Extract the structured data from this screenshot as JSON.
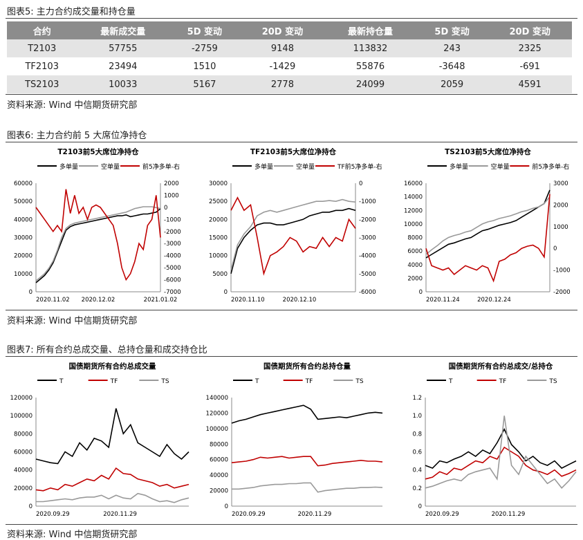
{
  "fig5": {
    "title": "图表5:  主力合约成交量和持仓量",
    "headers": [
      "合约",
      "最新成交量",
      "5D 变动",
      "20D 变动",
      "最新持仓量",
      "5D 变动",
      "20D 变动"
    ],
    "rows": [
      [
        "T2103",
        "57755",
        "-2759",
        "9148",
        "113832",
        "243",
        "2325"
      ],
      [
        "TF2103",
        "23494",
        "1510",
        "-1429",
        "55876",
        "-3648",
        "-691"
      ],
      [
        "TS2103",
        "10033",
        "5167",
        "2778",
        "24099",
        "2059",
        "4591"
      ]
    ],
    "source": "资料来源: Wind  中信期货研究部"
  },
  "fig6": {
    "title": "图表6:  主力合约前 5 大席位净持仓",
    "source": "资料来源: Wind  中信期货研究部"
  },
  "fig7": {
    "title": "图表7:  所有合约总成交量、总持仓量和成交持仓比",
    "source": "资料来源: Wind  中信期货研究部"
  },
  "colors": {
    "T": "#000000",
    "TF": "#c00000",
    "TS": "#999999",
    "header": "#8c8c8c"
  },
  "chart_data": [
    {
      "type": "line",
      "title": "T2103前5大席位净持仓",
      "legend": [
        "多单量",
        "空单量",
        "前5净多单-右"
      ],
      "x_ticks": [
        "2020.11.02",
        "2020.12.02",
        "2021.01.02"
      ],
      "ylim": [
        0,
        60000
      ],
      "y_ticks": [
        0,
        10000,
        20000,
        30000,
        40000,
        50000,
        60000
      ],
      "y2lim": [
        -7000,
        2000
      ],
      "y2_ticks": [
        -7000,
        -6000,
        -5000,
        -4000,
        -3000,
        -2000,
        -1000,
        0,
        1000,
        2000
      ],
      "series": [
        {
          "name": "多单量",
          "axis": "left",
          "color": "#000000",
          "values": [
            5000,
            7000,
            9000,
            12000,
            16000,
            22000,
            28000,
            34000,
            36000,
            37000,
            37500,
            38000,
            38500,
            39000,
            39500,
            40000,
            40500,
            41000,
            41500,
            42000,
            42000,
            42500,
            41500,
            42000,
            42500,
            43000,
            43000,
            43500,
            44000,
            46000
          ]
        },
        {
          "name": "空单量",
          "axis": "left",
          "color": "#999999",
          "values": [
            6000,
            8000,
            10000,
            13000,
            17000,
            23000,
            30000,
            35000,
            37000,
            38000,
            38500,
            39000,
            39500,
            40000,
            40500,
            41000,
            41500,
            42000,
            42500,
            43000,
            43500,
            44000,
            45000,
            46000,
            46500,
            47000,
            47000,
            47000,
            46500,
            46000
          ]
        },
        {
          "name": "前5净多单-右",
          "axis": "right",
          "color": "#c00000",
          "values": [
            0,
            -500,
            -1000,
            -1500,
            -2000,
            -1500,
            -2000,
            1500,
            -500,
            1000,
            -500,
            0,
            -1000,
            0,
            200,
            0,
            -500,
            -1000,
            -1500,
            -3000,
            -5000,
            -6000,
            -5500,
            -4500,
            -3000,
            -3500,
            -1500,
            -1000,
            1000,
            -2500
          ]
        }
      ]
    },
    {
      "type": "line",
      "title": "TF2103前5大席位净持仓",
      "legend": [
        "多单量",
        "空单量",
        "TF前5净多单-右"
      ],
      "x_ticks": [
        "2020.11.10",
        "2020.12.10"
      ],
      "ylim": [
        0,
        30000
      ],
      "y_ticks": [
        0,
        5000,
        10000,
        15000,
        20000,
        25000,
        30000
      ],
      "y2lim": [
        -6000,
        0
      ],
      "y2_ticks": [
        -6000,
        -5000,
        -4000,
        -3000,
        -2000,
        -1000,
        0
      ],
      "series": [
        {
          "name": "多单量",
          "axis": "left",
          "color": "#000000",
          "values": [
            5000,
            12000,
            15000,
            17000,
            18500,
            19000,
            19000,
            18500,
            18500,
            19000,
            19500,
            20000,
            21000,
            21500,
            22000,
            22000,
            22500,
            22500,
            23000,
            22500
          ]
        },
        {
          "name": "空单量",
          "axis": "left",
          "color": "#999999",
          "values": [
            6000,
            13000,
            16000,
            18000,
            21000,
            22000,
            22500,
            22000,
            22500,
            23000,
            23500,
            24000,
            24500,
            25000,
            25000,
            25200,
            25000,
            25500,
            25000,
            24800
          ]
        },
        {
          "name": "TF前5净多单-右",
          "axis": "right",
          "color": "#c00000",
          "values": [
            -1500,
            -800,
            -1500,
            -1200,
            -3000,
            -5000,
            -4000,
            -3800,
            -3500,
            -3000,
            -3200,
            -3800,
            -3500,
            -3600,
            -3000,
            -3500,
            -3000,
            -3200,
            -2000,
            -2500
          ]
        }
      ]
    },
    {
      "type": "line",
      "title": "TS2103前5大席位净持仓",
      "legend": [
        "多单量",
        "空单量",
        "前5净多单-右"
      ],
      "x_ticks": [
        "2020.11.24",
        "2020.12.24"
      ],
      "ylim": [
        0,
        16000
      ],
      "y_ticks": [
        0,
        2000,
        4000,
        6000,
        8000,
        10000,
        12000,
        14000,
        16000
      ],
      "y2lim": [
        -2000,
        3000
      ],
      "y2_ticks": [
        -2000,
        -1000,
        0,
        1000,
        2000,
        3000
      ],
      "series": [
        {
          "name": "多单量",
          "axis": "left",
          "color": "#000000",
          "values": [
            5000,
            5500,
            6000,
            6500,
            7000,
            7200,
            7500,
            7800,
            8000,
            8500,
            9000,
            9200,
            9500,
            9800,
            10000,
            10200,
            10500,
            11000,
            11500,
            12000,
            12500,
            13000,
            15000
          ]
        },
        {
          "name": "空单量",
          "axis": "left",
          "color": "#999999",
          "values": [
            5500,
            6200,
            6800,
            7500,
            8000,
            8300,
            8500,
            8800,
            9000,
            9500,
            10000,
            10300,
            10500,
            10800,
            11000,
            11200,
            11500,
            11800,
            12000,
            12300,
            12500,
            13000,
            14000
          ]
        },
        {
          "name": "前5净多单-右",
          "axis": "right",
          "color": "#c00000",
          "values": [
            0,
            -800,
            -900,
            -1000,
            -900,
            -1200,
            -1000,
            -800,
            -900,
            -1000,
            -800,
            -900,
            -1500,
            -600,
            -500,
            -300,
            -200,
            0,
            100,
            150,
            0,
            -400,
            2500
          ]
        }
      ]
    },
    {
      "type": "line",
      "title": "国债期货所有合约总成交量",
      "legend": [
        "T",
        "TF",
        "TS"
      ],
      "x_ticks": [
        "2020.09.29",
        "2020.11.29"
      ],
      "ylim": [
        0,
        120000
      ],
      "y_ticks": [
        0,
        20000,
        40000,
        60000,
        80000,
        100000,
        120000
      ],
      "series": [
        {
          "name": "T",
          "color": "#000000",
          "values": [
            52000,
            50000,
            48000,
            47000,
            60000,
            55000,
            70000,
            62000,
            75000,
            72000,
            65000,
            108000,
            80000,
            90000,
            70000,
            65000,
            60000,
            55000,
            68000,
            58000,
            52000,
            60000
          ]
        },
        {
          "name": "TF",
          "color": "#c00000",
          "values": [
            18000,
            17000,
            20000,
            18000,
            24000,
            22000,
            26000,
            30000,
            28000,
            34000,
            30000,
            42000,
            36000,
            35000,
            30000,
            28000,
            26000,
            22000,
            24000,
            20000,
            22000,
            24000
          ]
        },
        {
          "name": "TS",
          "color": "#999999",
          "values": [
            5000,
            5000,
            6000,
            7000,
            8000,
            7000,
            9000,
            10000,
            10000,
            12000,
            8000,
            12000,
            9000,
            8000,
            14000,
            12000,
            8000,
            5000,
            6000,
            4000,
            7000,
            9000
          ]
        }
      ]
    },
    {
      "type": "line",
      "title": "国债期货所有合约总持仓量",
      "legend": [
        "T",
        "TF",
        "TS"
      ],
      "x_ticks": [
        "2020.09.29",
        "2020.11.29"
      ],
      "ylim": [
        0,
        140000
      ],
      "y_ticks": [
        0,
        20000,
        40000,
        60000,
        80000,
        100000,
        120000,
        140000
      ],
      "series": [
        {
          "name": "T",
          "color": "#000000",
          "values": [
            107000,
            110000,
            112000,
            115000,
            118000,
            120000,
            122000,
            124000,
            126000,
            128000,
            130000,
            125000,
            112000,
            113000,
            114000,
            115000,
            114000,
            116000,
            118000,
            120000,
            121000,
            120000
          ]
        },
        {
          "name": "TF",
          "color": "#c00000",
          "values": [
            56000,
            57000,
            58000,
            60000,
            63000,
            62000,
            63000,
            64000,
            62000,
            63000,
            64000,
            64000,
            52000,
            53000,
            55000,
            56000,
            57000,
            58000,
            59000,
            58000,
            58000,
            57000
          ]
        },
        {
          "name": "TS",
          "color": "#999999",
          "values": [
            22000,
            22000,
            23000,
            24000,
            26000,
            27000,
            28000,
            28000,
            29000,
            29000,
            30000,
            30000,
            18000,
            20000,
            21000,
            22000,
            23000,
            23000,
            24000,
            24000,
            24500,
            24000
          ]
        }
      ]
    },
    {
      "type": "line",
      "title": "国债期货所有合约总成交/总持仓",
      "legend": [
        "T",
        "TF",
        "TS"
      ],
      "x_ticks": [
        "2020.09.29",
        "2020.11.29"
      ],
      "ylim": [
        0,
        1.2
      ],
      "y_ticks": [
        0,
        0.2,
        0.4,
        0.6,
        0.8,
        1.0,
        1.2
      ],
      "series": [
        {
          "name": "T",
          "color": "#000000",
          "values": [
            0.45,
            0.42,
            0.5,
            0.48,
            0.52,
            0.55,
            0.6,
            0.55,
            0.62,
            0.58,
            0.7,
            0.85,
            0.68,
            0.6,
            0.5,
            0.55,
            0.48,
            0.45,
            0.5,
            0.42,
            0.46,
            0.5
          ]
        },
        {
          "name": "TF",
          "color": "#c00000",
          "values": [
            0.3,
            0.32,
            0.38,
            0.35,
            0.42,
            0.4,
            0.45,
            0.5,
            0.48,
            0.55,
            0.52,
            0.65,
            0.6,
            0.55,
            0.45,
            0.4,
            0.38,
            0.35,
            0.4,
            0.33,
            0.36,
            0.4
          ]
        },
        {
          "name": "TS",
          "color": "#999999",
          "values": [
            0.2,
            0.22,
            0.25,
            0.28,
            0.3,
            0.28,
            0.35,
            0.38,
            0.4,
            0.42,
            0.3,
            1.0,
            0.45,
            0.35,
            0.55,
            0.45,
            0.35,
            0.25,
            0.3,
            0.2,
            0.28,
            0.38
          ]
        }
      ]
    }
  ]
}
